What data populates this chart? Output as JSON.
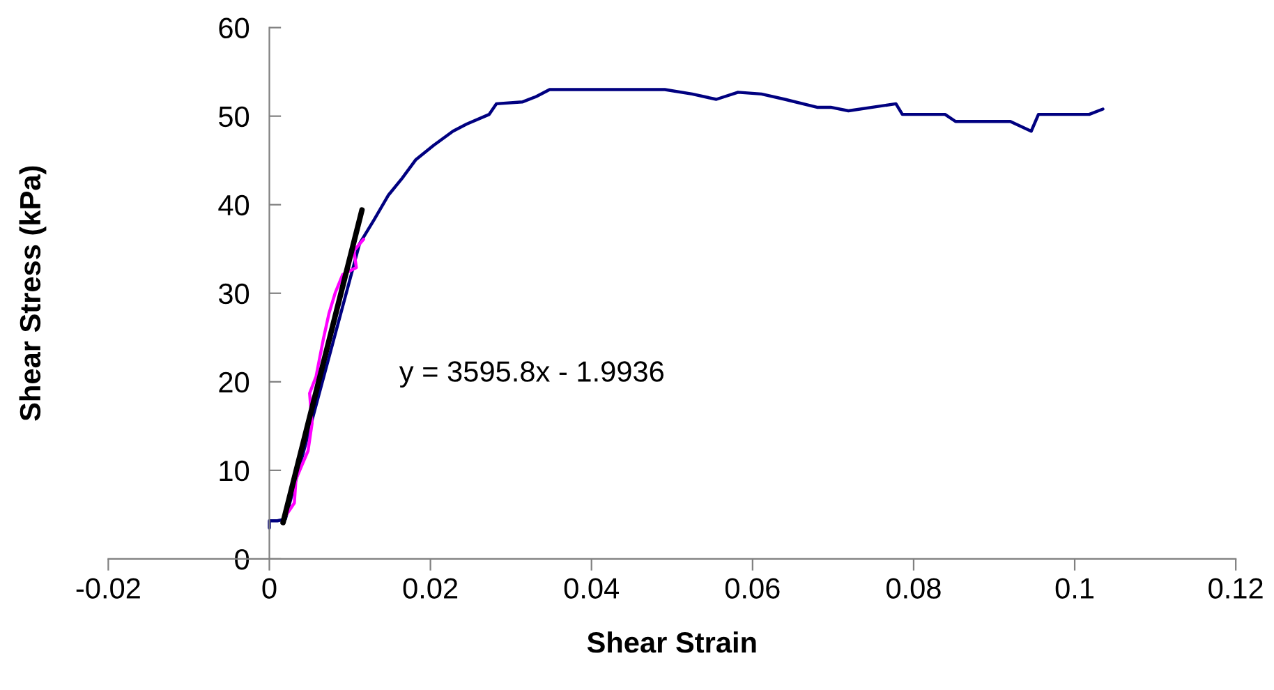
{
  "chart_data": {
    "type": "line",
    "xlabel": "Shear Strain",
    "ylabel": "Shear Stress (kPa)",
    "xlim": [
      -0.02,
      0.12
    ],
    "ylim": [
      0,
      60
    ],
    "xticks": [
      -0.02,
      0,
      0.02,
      0.04,
      0.06,
      0.08,
      0.1,
      0.12
    ],
    "yticks": [
      0,
      10,
      20,
      30,
      40,
      50,
      60
    ],
    "grid": false,
    "marker": "none",
    "line_style": "solid",
    "annotations": [
      "y = 3595.8x - 1.9936"
    ],
    "series": [
      {
        "color": "#000080",
        "x": [
          0,
          0,
          0.001,
          0.002,
          0.0112,
          0.013,
          0.0148,
          0.0165,
          0.0182,
          0.0204,
          0.0228,
          0.0245,
          0.0273,
          0.0282,
          0.0314,
          0.0331,
          0.0348,
          0.0491,
          0.0525,
          0.0555,
          0.0582,
          0.0611,
          0.064,
          0.068,
          0.0697,
          0.0719,
          0.0778,
          0.0786,
          0.0839,
          0.0852,
          0.092,
          0.0946,
          0.0955,
          0.1018,
          0.1035
        ],
        "values": [
          3.5,
          4.3,
          4.3,
          4.5,
          35.6,
          38.3,
          41.1,
          43.0,
          45.1,
          46.7,
          48.3,
          49.1,
          50.2,
          51.4,
          51.6,
          52.2,
          53.0,
          53.0,
          52.5,
          51.9,
          52.7,
          52.5,
          51.9,
          51.0,
          51.0,
          50.6,
          51.4,
          50.2,
          50.2,
          49.4,
          49.4,
          48.3,
          50.2,
          50.2,
          50.8
        ]
      },
      {
        "color": "#ff00ff",
        "x": [
          0.0019,
          0.0031,
          0.0033,
          0.0048,
          0.0053,
          0.005,
          0.0058,
          0.0067,
          0.0074,
          0.0082,
          0.0091,
          0.0108,
          0.0105,
          0.0117
        ],
        "values": [
          4.7,
          6.3,
          9.0,
          12.2,
          15.3,
          18.7,
          20.6,
          24.8,
          27.7,
          30.1,
          32.1,
          32.9,
          34.8,
          36.1
        ]
      },
      {
        "color": "#000000",
        "x": [
          0.0017,
          0.0115
        ],
        "values": [
          4.1,
          39.4
        ]
      }
    ]
  }
}
